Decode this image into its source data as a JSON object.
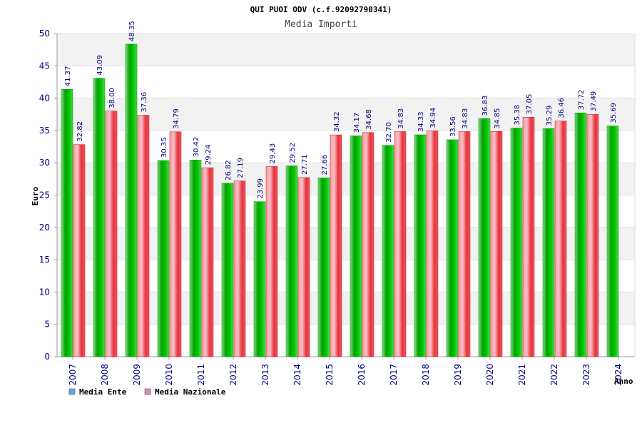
{
  "chart_data": {
    "type": "bar",
    "title": "QUI PUOI ODV (c.f.92092790341)",
    "subtitle": "Media Importi",
    "ylabel": "Euro",
    "xlabel": "Anno",
    "ylim": [
      0,
      50
    ],
    "yticks": [
      0,
      5,
      10,
      15,
      20,
      25,
      30,
      35,
      40,
      45,
      50
    ],
    "categories": [
      "2007",
      "2008",
      "2009",
      "2010",
      "2011",
      "2012",
      "2013",
      "2014",
      "2015",
      "2016",
      "2017",
      "2018",
      "2019",
      "2020",
      "2021",
      "2022",
      "2023",
      "2024"
    ],
    "series": [
      {
        "name": "Media Ente",
        "color": "#1db81d",
        "values": [
          41.37,
          43.09,
          48.35,
          30.35,
          30.42,
          26.82,
          23.99,
          29.52,
          27.66,
          34.17,
          32.7,
          34.33,
          33.56,
          36.83,
          35.38,
          35.29,
          37.72,
          35.69
        ],
        "labels": [
          "41.37",
          "43.09",
          "48.35",
          "30.35",
          "30.42",
          "26.82",
          "23.99",
          "29.52",
          "27.66",
          "34.17",
          "32.70",
          "34.33",
          "33.56",
          "36.83",
          "35.38",
          "35.29",
          "37.72",
          "35.69"
        ]
      },
      {
        "name": "Media Nazionale",
        "color": "#e83b4a",
        "values": [
          32.82,
          38.0,
          37.36,
          34.79,
          29.24,
          27.19,
          29.43,
          27.71,
          34.32,
          34.68,
          34.83,
          34.94,
          34.83,
          34.85,
          37.05,
          36.46,
          37.49,
          null
        ],
        "labels": [
          "32.82",
          "38.00",
          "37.36",
          "34.79",
          "29.24",
          "27.19",
          "29.43",
          "27.71",
          "34.32",
          "34.68",
          "34.83",
          "34.94",
          "34.83",
          "34.85",
          "37.05",
          "36.46",
          "37.49",
          ""
        ]
      }
    ],
    "legend": [
      {
        "label": "Media Ente",
        "swatch": "#5fa8e8"
      },
      {
        "label": "Media Nazionale",
        "swatch": "#d88ab8"
      }
    ],
    "grid": true,
    "legend_position": "bottom-left"
  }
}
